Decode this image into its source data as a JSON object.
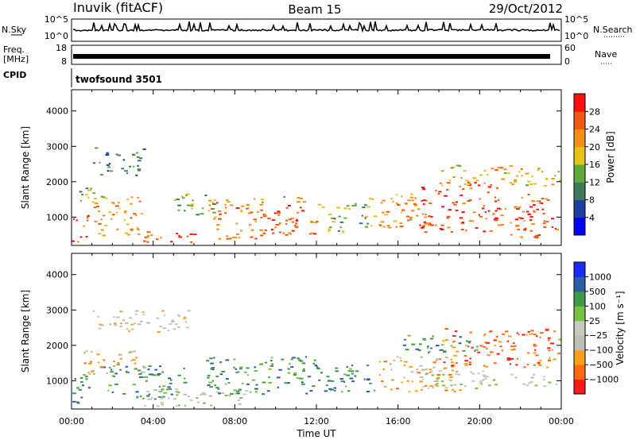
{
  "header": {
    "station": "Inuvik (fitACF)",
    "beam": "Beam 15",
    "date": "29/Oct/2012"
  },
  "strip_labels": {
    "nsky": "N.Sky",
    "nsearch": "N.Search",
    "freq_top": "Freq.",
    "freq_unit": "[MHz]",
    "nave": "Nave",
    "cpid": "CPID",
    "cpid_value": "twofsound 3501",
    "nsky_ticks": [
      "10^5",
      "10^0"
    ],
    "nsearch_ticks": [
      "10^5",
      "10^0"
    ],
    "freq_ticks": [
      "18",
      "8"
    ],
    "nave_ticks": [
      "60",
      "0"
    ]
  },
  "colors": {
    "power": [
      "#0000ff",
      "#1c3fa0",
      "#3f7a5a",
      "#5faa3a",
      "#e8c21a",
      "#f0901a",
      "#f05a10",
      "#ff1010"
    ],
    "velocity": [
      "#ff1a1a",
      "#ff6a10",
      "#f7a11a",
      "#bdbdb5",
      "#c9c9bf",
      "#79c23f",
      "#3f9a4a",
      "#2b5fa5",
      "#1a2bff"
    ]
  },
  "chart_data": [
    {
      "type": "heatmap",
      "ylabel": "Slant Range [km]",
      "colorbar_label": "Power [dB]",
      "colorbar_ticks": [
        "4",
        "8",
        "12",
        "16",
        "20",
        "24",
        "28"
      ],
      "colorbar_range": [
        0,
        32
      ],
      "ylim": [
        200,
        4600
      ],
      "y_ticks": [
        "1000",
        "2000",
        "3000",
        "4000"
      ],
      "x_ticks": [
        "00:00",
        "04:00",
        "08:00",
        "12:00",
        "16:00",
        "20:00",
        "00:00"
      ],
      "xlim_hours": [
        0,
        24
      ],
      "grid": false,
      "echo_regions": [
        {
          "t0": 0.0,
          "t1": 0.8,
          "r0": 300,
          "r1": 1100,
          "value": 26
        },
        {
          "t0": 0.3,
          "t1": 1.5,
          "r0": 1400,
          "r1": 2000,
          "value": 14
        },
        {
          "t0": 1.0,
          "t1": 3.5,
          "r0": 2200,
          "r1": 3000,
          "value": 10
        },
        {
          "t0": 1.0,
          "t1": 3.5,
          "r0": 500,
          "r1": 1600,
          "value": 22
        },
        {
          "t0": 3.5,
          "t1": 6.0,
          "r0": 300,
          "r1": 700,
          "value": 26
        },
        {
          "t0": 5.0,
          "t1": 7.0,
          "r0": 1000,
          "r1": 1700,
          "value": 14
        },
        {
          "t0": 6.5,
          "t1": 9.5,
          "r0": 400,
          "r1": 1600,
          "value": 24
        },
        {
          "t0": 9.5,
          "t1": 12.0,
          "r0": 500,
          "r1": 1600,
          "value": 26
        },
        {
          "t0": 12.0,
          "t1": 14.5,
          "r0": 600,
          "r1": 1400,
          "value": 14
        },
        {
          "t0": 14.5,
          "t1": 17.0,
          "r0": 700,
          "r1": 1700,
          "value": 22
        },
        {
          "t0": 17.0,
          "t1": 21.0,
          "r0": 600,
          "r1": 2000,
          "value": 27
        },
        {
          "t0": 21.0,
          "t1": 24.0,
          "r0": 400,
          "r1": 1700,
          "value": 26
        },
        {
          "t0": 18.0,
          "t1": 24.0,
          "r0": 1900,
          "r1": 2500,
          "value": 20
        }
      ]
    },
    {
      "type": "heatmap",
      "ylabel": "Slant Range [km]",
      "xlabel": "Time UT",
      "colorbar_label": "Velocity [m s⁻¹]",
      "colorbar_ticks": [
        "1000",
        "500",
        "100",
        "25",
        "−25",
        "−100",
        "−500",
        "−1000"
      ],
      "ylim": [
        200,
        4600
      ],
      "y_ticks": [
        "1000",
        "2000",
        "3000",
        "4000"
      ],
      "x_ticks": [
        "00:00",
        "04:00",
        "08:00",
        "12:00",
        "16:00",
        "20:00",
        "00:00"
      ],
      "xlim_hours": [
        0,
        24
      ],
      "grid": false,
      "echo_regions": [
        {
          "t0": 0.0,
          "t1": 1.0,
          "r0": 300,
          "r1": 1200,
          "value": 6
        },
        {
          "t0": 0.5,
          "t1": 3.5,
          "r0": 1200,
          "r1": 1900,
          "value": 2
        },
        {
          "t0": 1.0,
          "t1": 6.0,
          "r0": 2400,
          "r1": 3000,
          "value": 3
        },
        {
          "t0": 1.5,
          "t1": 5.5,
          "r0": 500,
          "r1": 1500,
          "value": 6
        },
        {
          "t0": 3.5,
          "t1": 8.5,
          "r0": 300,
          "r1": 800,
          "value": 4
        },
        {
          "t0": 6.5,
          "t1": 12.0,
          "r0": 600,
          "r1": 1700,
          "value": 6
        },
        {
          "t0": 12.0,
          "t1": 15.0,
          "r0": 700,
          "r1": 1500,
          "value": 6
        },
        {
          "t0": 15.0,
          "t1": 19.0,
          "r0": 700,
          "r1": 1700,
          "value": 2
        },
        {
          "t0": 17.0,
          "t1": 24.0,
          "r0": 800,
          "r1": 1300,
          "value": 4
        },
        {
          "t0": 18.0,
          "t1": 24.0,
          "r0": 1400,
          "r1": 2500,
          "value": 1
        },
        {
          "t0": 16.0,
          "t1": 20.0,
          "r0": 1800,
          "r1": 2300,
          "value": 6
        }
      ]
    }
  ]
}
